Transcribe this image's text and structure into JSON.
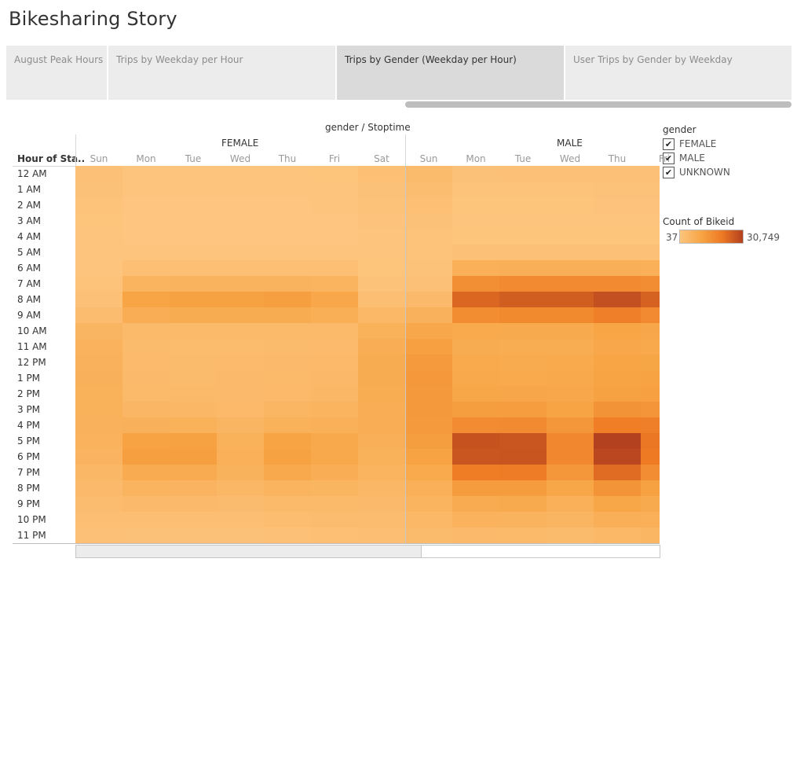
{
  "dashboard_title": "Bikesharing Story",
  "tabs": [
    {
      "label": "August Peak Hours",
      "active": false
    },
    {
      "label": "Trips by Weekday per Hour",
      "active": false
    },
    {
      "label": "Trips by Gender (Weekday per Hour)",
      "active": true
    },
    {
      "label": "User Trips by Gender by Weekday",
      "active": false
    }
  ],
  "sheet": {
    "title": "gender / Stoptime",
    "row_header": "Hour of Sta..",
    "groups": [
      "FEMALE",
      "MALE"
    ]
  },
  "legend": {
    "title": "gender",
    "items": [
      {
        "label": "FEMALE",
        "checked": true,
        "mark": "✔"
      },
      {
        "label": "MALE",
        "checked": true,
        "mark": "✔"
      },
      {
        "label": "UNKNOWN",
        "checked": true,
        "mark": "✔"
      }
    ]
  },
  "color_legend": {
    "title": "Count of Bikeid",
    "min_label": "37",
    "max_label": "30,749",
    "min": 37,
    "max": 30749,
    "ramp_colors": [
      "#fdc57f",
      "#f7a545",
      "#ee7a24",
      "#b3401e"
    ]
  },
  "chart_data": {
    "type": "heatmap",
    "title": "gender / Stoptime",
    "ylabel": "Hour of Sta..",
    "rows": [
      "12 AM",
      "1 AM",
      "2 AM",
      "3 AM",
      "4 AM",
      "5 AM",
      "6 AM",
      "7 AM",
      "8 AM",
      "9 AM",
      "10 AM",
      "11 AM",
      "12 PM",
      "1 PM",
      "2 PM",
      "3 PM",
      "4 PM",
      "5 PM",
      "6 PM",
      "7 PM",
      "8 PM",
      "9 PM",
      "10 PM",
      "11 PM"
    ],
    "columns": [
      {
        "group": "FEMALE",
        "day": "Sun"
      },
      {
        "group": "FEMALE",
        "day": "Mon"
      },
      {
        "group": "FEMALE",
        "day": "Tue"
      },
      {
        "group": "FEMALE",
        "day": "Wed"
      },
      {
        "group": "FEMALE",
        "day": "Thu"
      },
      {
        "group": "FEMALE",
        "day": "Fri"
      },
      {
        "group": "FEMALE",
        "day": "Sat"
      },
      {
        "group": "MALE",
        "day": "Sun"
      },
      {
        "group": "MALE",
        "day": "Mon"
      },
      {
        "group": "MALE",
        "day": "Tue"
      },
      {
        "group": "MALE",
        "day": "Wed"
      },
      {
        "group": "MALE",
        "day": "Thu"
      },
      {
        "group": "MALE",
        "day": "Fri"
      }
    ],
    "values": [
      [
        1700,
        300,
        300,
        300,
        400,
        500,
        1900,
        3300,
        1300,
        1400,
        1500,
        1600,
        1700
      ],
      [
        1200,
        200,
        200,
        200,
        200,
        300,
        1300,
        2600,
        700,
        800,
        800,
        900,
        900
      ],
      [
        800,
        100,
        100,
        100,
        100,
        200,
        900,
        2000,
        500,
        500,
        500,
        600,
        600
      ],
      [
        500,
        100,
        100,
        100,
        100,
        100,
        600,
        1200,
        400,
        400,
        400,
        400,
        400
      ],
      [
        300,
        100,
        100,
        100,
        100,
        100,
        400,
        800,
        500,
        500,
        500,
        500,
        500
      ],
      [
        300,
        300,
        300,
        300,
        300,
        300,
        300,
        700,
        1600,
        1600,
        1600,
        1600,
        1600
      ],
      [
        400,
        1900,
        2100,
        2100,
        2100,
        1900,
        500,
        900,
        6700,
        7100,
        7100,
        7100,
        6800
      ],
      [
        700,
        5700,
        6100,
        6100,
        6100,
        5700,
        900,
        1600,
        15800,
        16800,
        16800,
        16800,
        16000
      ],
      [
        1600,
        10200,
        10900,
        10900,
        11700,
        9400,
        2200,
        3600,
        24000,
        25500,
        25500,
        28000,
        24700
      ],
      [
        2900,
        7700,
        8000,
        8000,
        8000,
        7200,
        4300,
        6300,
        16100,
        17000,
        17000,
        19000,
        16700
      ],
      [
        5000,
        3800,
        3700,
        3700,
        3800,
        3800,
        6500,
        9400,
        8800,
        8700,
        8700,
        10300,
        9500
      ],
      [
        6000,
        3200,
        3000,
        3000,
        3200,
        3400,
        7500,
        11500,
        8000,
        7800,
        7800,
        9300,
        9000
      ],
      [
        6400,
        3400,
        3200,
        3400,
        3600,
        3900,
        8100,
        12800,
        8800,
        8500,
        8800,
        10200,
        10100
      ],
      [
        6600,
        3500,
        3300,
        3600,
        3800,
        4100,
        7900,
        13300,
        9100,
        8800,
        9100,
        10500,
        10800
      ],
      [
        6500,
        3800,
        3700,
        3500,
        3900,
        4500,
        7800,
        13200,
        9800,
        9500,
        9200,
        11200,
        11500
      ],
      [
        6500,
        4700,
        4600,
        4000,
        4900,
        5500,
        7600,
        13000,
        12000,
        12100,
        10500,
        14500,
        14000
      ],
      [
        6300,
        6600,
        6500,
        5000,
        6500,
        6700,
        7300,
        12600,
        16500,
        16700,
        13500,
        19500,
        19000
      ],
      [
        6000,
        10800,
        11000,
        6500,
        10500,
        9000,
        7000,
        12000,
        27500,
        27000,
        17500,
        30749,
        21000
      ],
      [
        5400,
        11700,
        11600,
        6900,
        11200,
        9100,
        6500,
        10800,
        27000,
        27100,
        17300,
        29500,
        20500
      ],
      [
        4500,
        8400,
        8300,
        6200,
        8900,
        7300,
        5600,
        8800,
        19900,
        20000,
        13600,
        23000,
        16000
      ],
      [
        3600,
        5500,
        5400,
        4500,
        5600,
        5300,
        4500,
        6900,
        12300,
        12400,
        9700,
        14400,
        11200
      ],
      [
        2900,
        3600,
        3500,
        3100,
        3700,
        3800,
        3600,
        5500,
        8400,
        8600,
        6900,
        9800,
        8700
      ],
      [
        2300,
        2400,
        2300,
        2200,
        2500,
        2800,
        2900,
        4200,
        6000,
        6100,
        5100,
        7100,
        6700
      ],
      [
        1700,
        1300,
        1300,
        1300,
        1400,
        2000,
        2400,
        3200,
        3600,
        3700,
        3300,
        4200,
        4900
      ]
    ]
  }
}
